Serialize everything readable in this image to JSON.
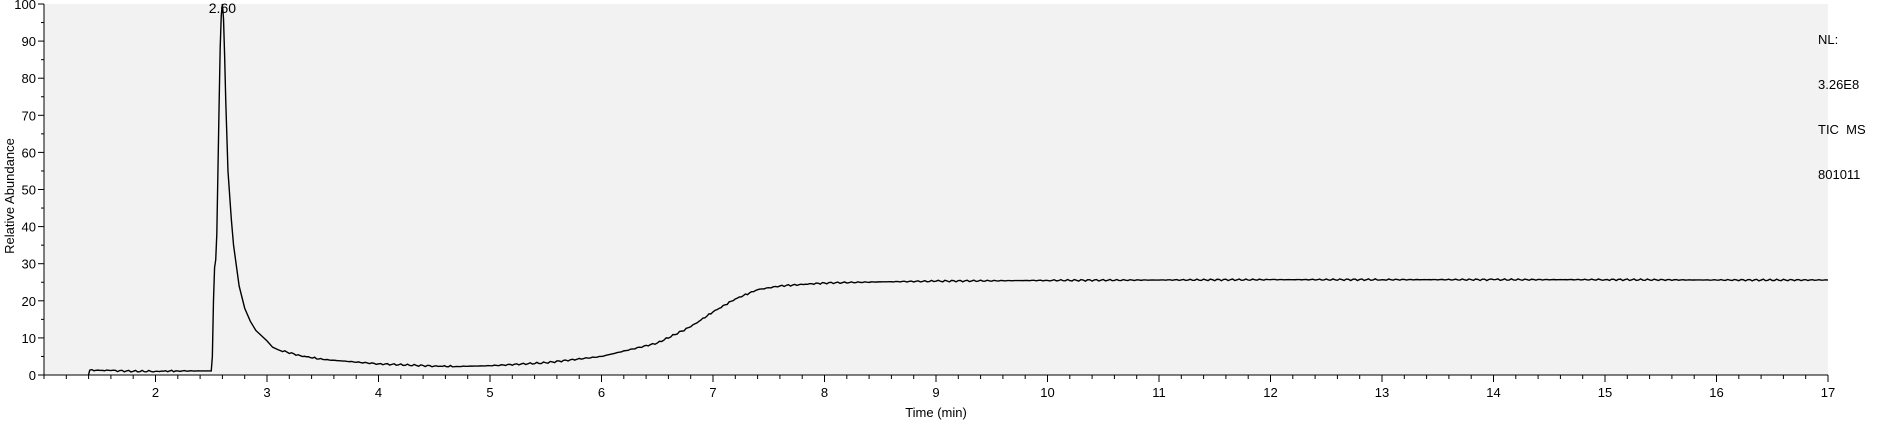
{
  "chart_data": {
    "type": "line",
    "title": "",
    "xlabel": "Time (min)",
    "ylabel": "Relative Abundance",
    "xlim": [
      1.0,
      17.0
    ],
    "ylim": [
      0,
      100
    ],
    "xticks": [
      2,
      3,
      4,
      5,
      6,
      7,
      8,
      9,
      10,
      11,
      12,
      13,
      14,
      15,
      16,
      17
    ],
    "yticks": [
      0,
      10,
      20,
      30,
      40,
      50,
      60,
      70,
      80,
      90,
      100
    ],
    "grid": false,
    "colors": {
      "background": "#f2f2f2",
      "line": "#000000"
    },
    "peak_annotation": {
      "label": "2.60",
      "x": 2.6,
      "y": 100
    },
    "info_lines": [
      "NL:",
      "3.26E8",
      "TIC  MS",
      "801011"
    ],
    "series": [
      {
        "x": [
          1.4,
          1.41,
          1.6,
          1.8,
          2.0,
          2.2,
          2.4,
          2.5,
          2.51,
          2.52,
          2.53,
          2.54,
          2.55,
          2.56,
          2.57,
          2.58,
          2.59,
          2.6,
          2.61,
          2.62,
          2.63,
          2.65,
          2.68,
          2.7,
          2.75,
          2.8,
          2.85,
          2.9,
          3.0,
          3.05,
          3.1,
          3.3,
          3.5,
          4.0,
          4.5,
          4.7,
          5.0,
          5.5,
          6.0,
          6.5,
          6.8,
          7.0,
          7.2,
          7.4,
          7.6,
          8.0,
          8.5,
          9.0,
          10.0,
          11.0,
          12.0,
          13.0,
          14.0,
          15.0,
          16.0,
          17.0
        ],
        "y": [
          0.1,
          1.3,
          1.2,
          1.0,
          1.0,
          1.1,
          1.1,
          1.1,
          5.0,
          20.0,
          29.0,
          31.0,
          38.0,
          55.0,
          72.0,
          88.0,
          97.0,
          100.0,
          96.0,
          86.0,
          74.0,
          55.0,
          42.0,
          35.0,
          24.0,
          18.0,
          14.5,
          12.0,
          9.2,
          7.5,
          6.8,
          5.2,
          4.2,
          3.0,
          2.4,
          2.3,
          2.5,
          3.3,
          5.0,
          8.6,
          13.0,
          17.0,
          20.5,
          23.0,
          24.0,
          24.8,
          25.1,
          25.3,
          25.5,
          25.6,
          25.7,
          25.7,
          25.7,
          25.7,
          25.6,
          25.6
        ]
      }
    ]
  }
}
